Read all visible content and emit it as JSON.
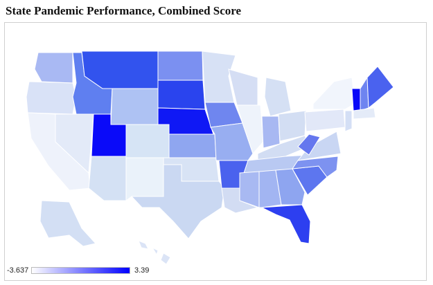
{
  "title": "State Pandemic Performance, Combined Score",
  "legend": {
    "min_label": "-3.637",
    "max_label": "3.39",
    "min_color": "#ffffff",
    "max_color": "#0000ff"
  },
  "map": {
    "type": "choropleth",
    "region": "USA states",
    "color_scale": [
      "#ffffff",
      "#0000ff"
    ],
    "states": [
      {
        "id": "WA",
        "color": "#a9b9f3"
      },
      {
        "id": "OR",
        "color": "#d9e2f7"
      },
      {
        "id": "CA",
        "color": "#eef2fb"
      },
      {
        "id": "ID",
        "color": "#5f7ff0"
      },
      {
        "id": "NV",
        "color": "#e3eaf8"
      },
      {
        "id": "MT",
        "color": "#3253ee"
      },
      {
        "id": "WY",
        "color": "#aec2f3"
      },
      {
        "id": "UT",
        "color": "#0a0af9"
      },
      {
        "id": "AZ",
        "color": "#d4e1f4"
      },
      {
        "id": "CO",
        "color": "#d6e4f5"
      },
      {
        "id": "NM",
        "color": "#eaf2fa"
      },
      {
        "id": "ND",
        "color": "#7b90f1"
      },
      {
        "id": "SD",
        "color": "#2a44ee"
      },
      {
        "id": "NE",
        "color": "#0f18f5"
      },
      {
        "id": "KS",
        "color": "#8fa6f0"
      },
      {
        "id": "OK",
        "color": "#d8e3f5"
      },
      {
        "id": "TX",
        "color": "#cad8f2"
      },
      {
        "id": "MN",
        "color": "#d7e1f5"
      },
      {
        "id": "IA",
        "color": "#6f86ef"
      },
      {
        "id": "MO",
        "color": "#98aef1"
      },
      {
        "id": "AR",
        "color": "#4a62ee"
      },
      {
        "id": "LA",
        "color": "#d2dcf3"
      },
      {
        "id": "WI",
        "color": "#d5def4"
      },
      {
        "id": "IL",
        "color": "#eef3fb"
      },
      {
        "id": "MI",
        "color": "#d5e0f4"
      },
      {
        "id": "IN",
        "color": "#a8b8f2"
      },
      {
        "id": "OH",
        "color": "#d3def3"
      },
      {
        "id": "KY",
        "color": "#d2ddf3"
      },
      {
        "id": "TN",
        "color": "#b9c9f2"
      },
      {
        "id": "MS",
        "color": "#a8b9f2"
      },
      {
        "id": "AL",
        "color": "#a2b5f2"
      },
      {
        "id": "GA",
        "color": "#8ea5f0"
      },
      {
        "id": "FL",
        "color": "#2d3ff0"
      },
      {
        "id": "SC",
        "color": "#5d76ef"
      },
      {
        "id": "NC",
        "color": "#7d92f0"
      },
      {
        "id": "VA",
        "color": "#c9d6f3"
      },
      {
        "id": "WV",
        "color": "#6577ee"
      },
      {
        "id": "PA",
        "color": "#e2e8f8"
      },
      {
        "id": "NY",
        "color": "#f1f5fc"
      },
      {
        "id": "ME",
        "color": "#4a62ef"
      },
      {
        "id": "NH",
        "color": "#6e84f0"
      },
      {
        "id": "VT",
        "color": "#0808f8"
      },
      {
        "id": "MA",
        "color": "#e4ebf8"
      },
      {
        "id": "NJ",
        "color": "#d4dff5"
      },
      {
        "id": "AK",
        "color": "#d3dff4"
      },
      {
        "id": "HI",
        "color": "#dbe4f6"
      }
    ]
  }
}
